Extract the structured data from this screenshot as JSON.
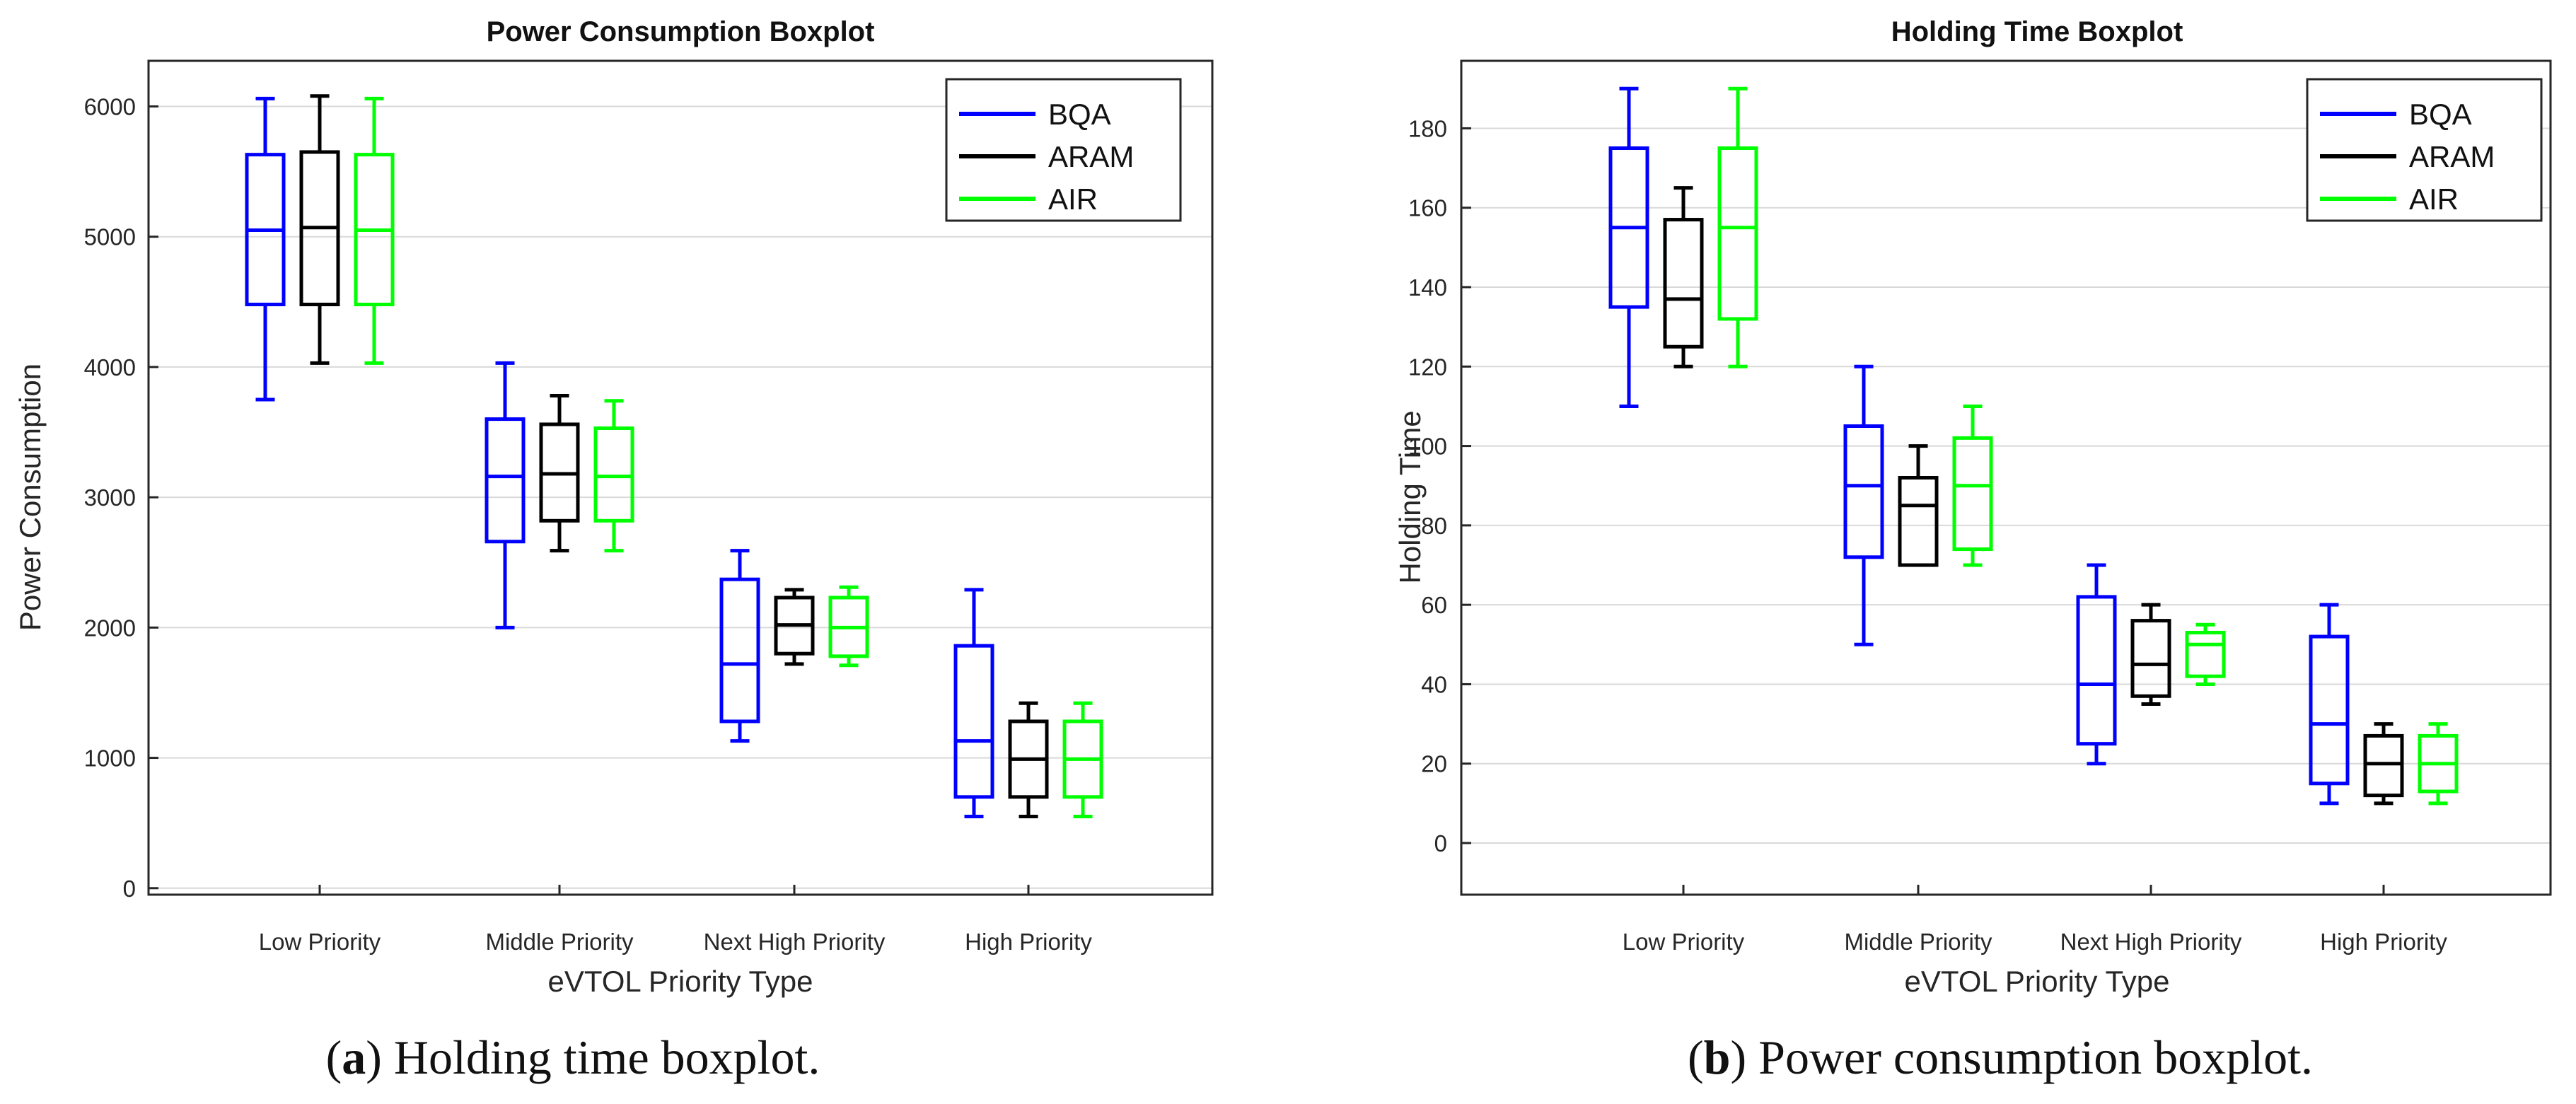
{
  "chart_data": [
    {
      "type": "boxplot",
      "title": "Power Consumption Boxplot",
      "xlabel": "eVTOL Priority Type",
      "ylabel": "Power Consumption",
      "ylim": [
        -50,
        6350
      ],
      "yticks": [
        0,
        1000,
        2000,
        3000,
        4000,
        5000,
        6000
      ],
      "grid": true,
      "legend_position": "top-right",
      "categories": [
        "Low Priority",
        "Middle Priority",
        "Next High Priority",
        "High Priority"
      ],
      "series": [
        {
          "name": "BQA",
          "color": "#0000ff",
          "boxes": [
            {
              "min": 3750,
              "q1": 4480,
              "median": 5050,
              "q3": 5630,
              "max": 6060
            },
            {
              "min": 2000,
              "q1": 2660,
              "median": 3160,
              "q3": 3600,
              "max": 4030
            },
            {
              "min": 1130,
              "q1": 1280,
              "median": 1720,
              "q3": 2370,
              "max": 2590
            },
            {
              "min": 550,
              "q1": 700,
              "median": 1130,
              "q3": 1860,
              "max": 2290
            }
          ]
        },
        {
          "name": "ARAM",
          "color": "#000000",
          "boxes": [
            {
              "min": 4030,
              "q1": 4480,
              "median": 5070,
              "q3": 5650,
              "max": 6080
            },
            {
              "min": 2590,
              "q1": 2820,
              "median": 3180,
              "q3": 3560,
              "max": 3780
            },
            {
              "min": 1720,
              "q1": 1800,
              "median": 2020,
              "q3": 2230,
              "max": 2290
            },
            {
              "min": 550,
              "q1": 700,
              "median": 990,
              "q3": 1280,
              "max": 1420
            }
          ]
        },
        {
          "name": "AIR",
          "color": "#00ff00",
          "boxes": [
            {
              "min": 4030,
              "q1": 4480,
              "median": 5050,
              "q3": 5630,
              "max": 6060
            },
            {
              "min": 2590,
              "q1": 2820,
              "median": 3160,
              "q3": 3530,
              "max": 3740
            },
            {
              "min": 1710,
              "q1": 1780,
              "median": 2000,
              "q3": 2230,
              "max": 2310
            },
            {
              "min": 550,
              "q1": 700,
              "median": 990,
              "q3": 1280,
              "max": 1420
            }
          ]
        }
      ]
    },
    {
      "type": "boxplot",
      "title": "Holding Time Boxplot",
      "xlabel": "eVTOL Priority Type",
      "ylabel": "Holding Time",
      "ylim": [
        -13,
        197
      ],
      "yticks": [
        0,
        20,
        40,
        60,
        80,
        100,
        120,
        140,
        160,
        180
      ],
      "grid": true,
      "legend_position": "top-right",
      "categories": [
        "Low Priority",
        "Middle Priority",
        "Next High Priority",
        "High Priority"
      ],
      "series": [
        {
          "name": "BQA",
          "color": "#0000ff",
          "boxes": [
            {
              "min": 110,
              "q1": 135,
              "median": 155,
              "q3": 175,
              "max": 190
            },
            {
              "min": 50,
              "q1": 72,
              "median": 90,
              "q3": 105,
              "max": 120
            },
            {
              "min": 20,
              "q1": 25,
              "median": 40,
              "q3": 62,
              "max": 70
            },
            {
              "min": 10,
              "q1": 15,
              "median": 30,
              "q3": 52,
              "max": 60
            }
          ]
        },
        {
          "name": "ARAM",
          "color": "#000000",
          "boxes": [
            {
              "min": 120,
              "q1": 125,
              "median": 137,
              "q3": 157,
              "max": 165
            },
            {
              "min": 70,
              "q1": 70,
              "median": 85,
              "q3": 92,
              "max": 100
            },
            {
              "min": 35,
              "q1": 37,
              "median": 45,
              "q3": 56,
              "max": 60
            },
            {
              "min": 10,
              "q1": 12,
              "median": 20,
              "q3": 27,
              "max": 30
            }
          ]
        },
        {
          "name": "AIR",
          "color": "#00ff00",
          "boxes": [
            {
              "min": 120,
              "q1": 132,
              "median": 155,
              "q3": 175,
              "max": 190
            },
            {
              "min": 70,
              "q1": 74,
              "median": 90,
              "q3": 102,
              "max": 110
            },
            {
              "min": 40,
              "q1": 42,
              "median": 50,
              "q3": 53,
              "max": 55
            },
            {
              "min": 10,
              "q1": 13,
              "median": 20,
              "q3": 27,
              "max": 30
            }
          ]
        }
      ]
    }
  ],
  "captions": [
    {
      "label": "a",
      "text": ") Holding time boxplot."
    },
    {
      "label": "b",
      "text": ") Power consumption boxplot."
    }
  ]
}
